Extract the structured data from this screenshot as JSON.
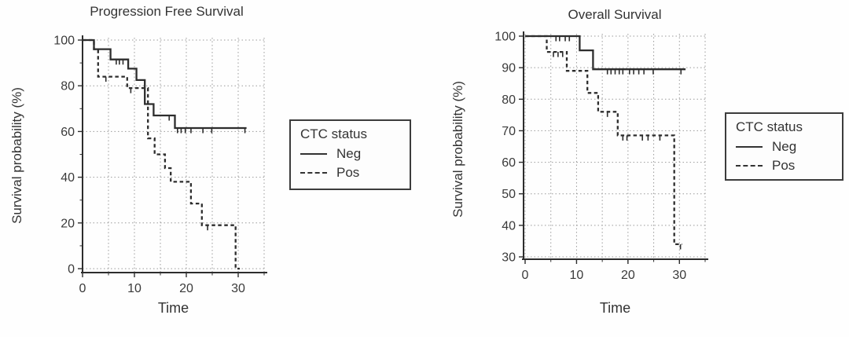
{
  "chart_data": [
    {
      "type": "line",
      "subtype": "kaplan-meier-step",
      "title": "Progression Free Survival",
      "xlabel": "Time",
      "ylabel": "Survival probability (%)",
      "xlim": [
        0,
        35
      ],
      "ylim": [
        0,
        100
      ],
      "xticks": [
        0,
        10,
        20,
        30
      ],
      "yticks": [
        0,
        20,
        40,
        60,
        80,
        100
      ],
      "yticks_minor": [
        10,
        30,
        50,
        70,
        90
      ],
      "grid_x": [
        0,
        5,
        10,
        15,
        20,
        25,
        30,
        35
      ],
      "grid_y": [
        0,
        20,
        40,
        60,
        80,
        100
      ],
      "grid": true,
      "legend": {
        "title": "CTC status",
        "position": "right",
        "entries": [
          {
            "label": "Neg",
            "style": "solid"
          },
          {
            "label": "Pos",
            "style": "dashed"
          }
        ]
      },
      "line_color": "#2d2d2d",
      "series": [
        {
          "name": "Neg",
          "style": "solid",
          "steps": [
            [
              0,
              100
            ],
            [
              2.2,
              96
            ],
            [
              5.4,
              91.5
            ],
            [
              8.8,
              87.5
            ],
            [
              10.4,
              82.5
            ],
            [
              12,
              72
            ],
            [
              13.7,
              67
            ],
            [
              17.8,
              61.5
            ]
          ],
          "end": 31.6,
          "censors": [
            [
              6.5,
              91.5
            ],
            [
              7.1,
              91.5
            ],
            [
              7.8,
              91.5
            ],
            [
              16.7,
              67
            ],
            [
              18.3,
              61.5
            ],
            [
              19,
              61.5
            ],
            [
              19.8,
              61.5
            ],
            [
              20.9,
              61.5
            ],
            [
              23.2,
              61.5
            ],
            [
              24.9,
              61.5
            ],
            [
              31.3,
              61.5
            ]
          ]
        },
        {
          "name": "Pos",
          "style": "dashed",
          "steps": [
            [
              0,
              100
            ],
            [
              2.2,
              96
            ],
            [
              3,
              84
            ],
            [
              8.6,
              79
            ],
            [
              12.6,
              57
            ],
            [
              13.9,
              50
            ],
            [
              15.9,
              44
            ],
            [
              17,
              38
            ],
            [
              20.9,
              28.5
            ],
            [
              23,
              19
            ],
            [
              29.5,
              0
            ]
          ],
          "end": 30.3,
          "censors": [
            [
              4.5,
              84
            ],
            [
              9.3,
              79
            ],
            [
              24.1,
              19
            ]
          ]
        }
      ]
    },
    {
      "type": "line",
      "subtype": "kaplan-meier-step",
      "title": "Overall Survival",
      "xlabel": "Time",
      "ylabel": "Survival probability (%)",
      "xlim": [
        0,
        35
      ],
      "ylim": [
        30,
        100
      ],
      "xticks": [
        0,
        10,
        20,
        30
      ],
      "yticks": [
        30,
        40,
        50,
        60,
        70,
        80,
        90,
        100
      ],
      "yticks_minor": [],
      "grid_x": [
        0,
        5,
        10,
        15,
        20,
        25,
        30,
        35
      ],
      "grid_y": [
        30,
        40,
        50,
        60,
        70,
        80,
        90,
        100
      ],
      "grid": true,
      "legend": {
        "title": "CTC status",
        "position": "right",
        "entries": [
          {
            "label": "Neg",
            "style": "solid"
          },
          {
            "label": "Pos",
            "style": "dashed"
          }
        ]
      },
      "line_color": "#2d2d2d",
      "series": [
        {
          "name": "Neg",
          "style": "solid",
          "steps": [
            [
              0,
              100
            ],
            [
              10.6,
              95.5
            ],
            [
              13.2,
              89.5
            ]
          ],
          "end": 31.2,
          "censors": [
            [
              6,
              100
            ],
            [
              6.7,
              100
            ],
            [
              7.8,
              100
            ],
            [
              8.6,
              100
            ],
            [
              16,
              89.5
            ],
            [
              16.7,
              89.5
            ],
            [
              17.5,
              89.5
            ],
            [
              18.3,
              89.5
            ],
            [
              19,
              89.5
            ],
            [
              20.3,
              89.5
            ],
            [
              21.1,
              89.5
            ],
            [
              22.1,
              89.5
            ],
            [
              23.1,
              89.5
            ],
            [
              24.9,
              89.5
            ],
            [
              30.3,
              89.5
            ]
          ]
        },
        {
          "name": "Pos",
          "style": "dashed",
          "steps": [
            [
              0,
              100
            ],
            [
              4.2,
              95
            ],
            [
              8.1,
              89
            ],
            [
              12.1,
              82
            ],
            [
              14.2,
              76
            ],
            [
              18,
              68.5
            ],
            [
              29,
              34
            ]
          ],
          "end": 30.5,
          "censors": [
            [
              5.5,
              95
            ],
            [
              6.4,
              95
            ],
            [
              7.3,
              95
            ],
            [
              16,
              76
            ],
            [
              19,
              68.5
            ],
            [
              19.8,
              68.5
            ],
            [
              22.8,
              68.5
            ],
            [
              23.9,
              68.5
            ],
            [
              26.2,
              68.5
            ],
            [
              30.2,
              34
            ]
          ]
        }
      ]
    }
  ]
}
